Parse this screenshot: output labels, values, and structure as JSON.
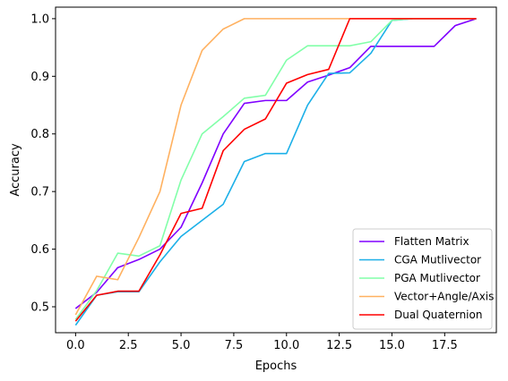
{
  "chart_data": {
    "type": "line",
    "xlabel": "Epochs",
    "ylabel": "Accuracy",
    "xlim": [
      -0.95,
      19.95
    ],
    "ylim": [
      0.455,
      1.02
    ],
    "x_ticks": [
      "0.0",
      "2.5",
      "5.0",
      "7.5",
      "10.0",
      "12.5",
      "15.0",
      "17.5"
    ],
    "y_ticks": [
      "0.5",
      "0.6",
      "0.7",
      "0.8",
      "0.9",
      "1.0"
    ],
    "grid": false,
    "legend_position": "bottom-right",
    "x": [
      0,
      1,
      2,
      3,
      4,
      5,
      6,
      7,
      8,
      9,
      10,
      11,
      12,
      13,
      14,
      15,
      16,
      17,
      18,
      19
    ],
    "series": [
      {
        "name": "Flatten Matrix",
        "color": "#8000ff",
        "values": [
          0.497,
          0.525,
          0.568,
          0.582,
          0.6,
          0.638,
          0.715,
          0.8,
          0.853,
          0.858,
          0.858,
          0.89,
          0.902,
          0.915,
          0.952,
          0.952,
          0.952,
          0.952,
          0.988,
          1.0
        ]
      },
      {
        "name": "CGA Mutlivector",
        "color": "#1cb0e8",
        "values": [
          0.468,
          0.52,
          0.526,
          0.526,
          0.578,
          0.622,
          0.65,
          0.678,
          0.752,
          0.766,
          0.766,
          0.85,
          0.905,
          0.906,
          0.94,
          0.997,
          1.0,
          1.0,
          1.0,
          1.0
        ]
      },
      {
        "name": "PGA Mutlivector",
        "color": "#82ffa9",
        "values": [
          0.478,
          0.528,
          0.593,
          0.588,
          0.606,
          0.72,
          0.8,
          0.83,
          0.862,
          0.867,
          0.928,
          0.953,
          0.953,
          0.953,
          0.96,
          0.997,
          1.0,
          1.0,
          1.0,
          1.0
        ]
      },
      {
        "name": "Vector+Angle/Axis",
        "color": "#ffb160",
        "values": [
          0.486,
          0.553,
          0.547,
          0.62,
          0.7,
          0.85,
          0.945,
          0.982,
          1.0,
          1.0,
          1.0,
          1.0,
          1.0,
          1.0,
          1.0,
          1.0,
          1.0,
          1.0,
          1.0,
          1.0
        ]
      },
      {
        "name": "Dual Quaternion",
        "color": "#ff0000",
        "values": [
          0.475,
          0.52,
          0.527,
          0.527,
          0.59,
          0.662,
          0.671,
          0.771,
          0.808,
          0.826,
          0.888,
          0.903,
          0.912,
          1.0,
          1.0,
          1.0,
          1.0,
          1.0,
          1.0,
          1.0
        ]
      }
    ]
  }
}
